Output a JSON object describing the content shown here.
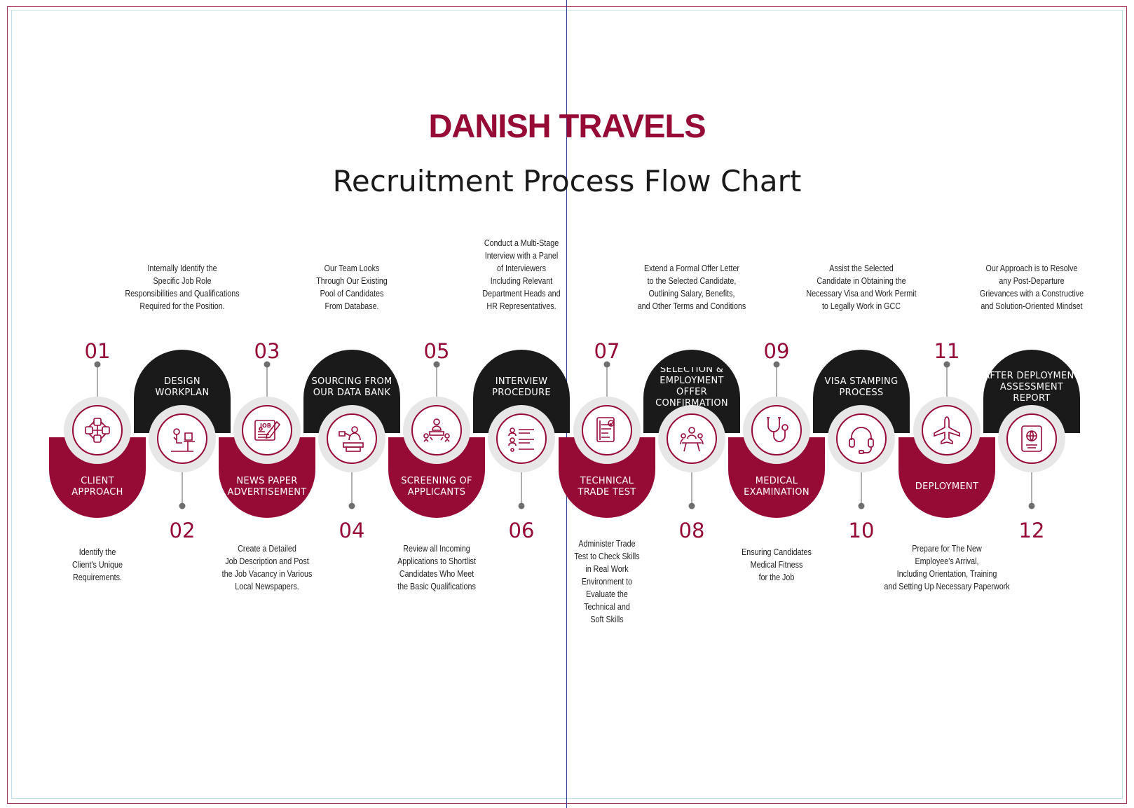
{
  "brand": "DANISH TRAVELS",
  "title": "Recruitment Process Flow Chart",
  "colors": {
    "primary": "#960a36",
    "dark": "#1b1a1a",
    "ring": "#e7e7e7"
  },
  "steps": [
    {
      "num": "01",
      "label": "CLIENT\nAPPROACH",
      "desc": "Identify the\nClient's Unique\nRequirements.",
      "icon": "network-nodes-icon"
    },
    {
      "num": "02",
      "label": "DESIGN\nWORKPLAN",
      "desc": "Internally Identify the\nSpecific Job Role\nResponsibilities and Qualifications\nRequired for the Position.",
      "icon": "desk-worker-icon"
    },
    {
      "num": "03",
      "label": "NEWS PAPER\nADVERTISEMENT",
      "desc": "Create a Detailed\nJob Description and Post\nthe Job Vacancy in Various\nLocal Newspapers.",
      "icon": "job-newspaper-icon",
      "icon_text": "JOB"
    },
    {
      "num": "04",
      "label": "SOURCING FROM\nOUR DATA BANK",
      "desc": "Our Team Looks\nThrough Our Existing\nPool of Candidates\nFrom Database.",
      "icon": "worker-database-icon"
    },
    {
      "num": "05",
      "label": "SCREENING OF\nAPPLICANTS",
      "desc": "Review all Incoming\nApplications to Shortlist\nCandidates Who Meet\nthe Basic Qualifications",
      "icon": "team-meeting-icon"
    },
    {
      "num": "06",
      "label": "INTERVIEW\nPROCEDURE",
      "desc": "Conduct a Multi-Stage\nInterview with a Panel\nof Interviewers\nIncluding Relevant\nDepartment Heads and\nHR Representatives.",
      "icon": "candidate-list-icon"
    },
    {
      "num": "07",
      "label": "TECHNICAL\nTRADE TEST",
      "desc": "Administer Trade\nTest to Check Skills\nin Real Work\nEnvironment to\nEvaluate the\nTechnical and\nSoft Skills",
      "icon": "test-document-icon"
    },
    {
      "num": "08",
      "label": "SELECTION &\nEMPLOYMENT OFFER\nCONFIRMATION",
      "desc": "Extend a Formal Offer Letter\nto the Selected Candidate,\nOutlining Salary, Benefits,\nand Other Terms and Conditions",
      "icon": "interview-table-icon"
    },
    {
      "num": "09",
      "label": "MEDICAL\nEXAMINATION",
      "desc": "Ensuring Candidates\nMedical Fitness\nfor the Job",
      "icon": "stethoscope-icon"
    },
    {
      "num": "10",
      "label": "VISA STAMPING\nPROCESS",
      "desc": "Assist the Selected\nCandidate in Obtaining the\nNecessary Visa and Work Permit\nto Legally Work in GCC",
      "icon": "headset-icon"
    },
    {
      "num": "11",
      "label": "DEPLOYMENT",
      "desc": "Prepare for The New\nEmployee's Arrival,\nIncluding Orientation, Training\nand Setting Up Necessary Paperwork",
      "icon": "airplane-icon"
    },
    {
      "num": "12",
      "label": "AFTER DEPLOYMENT\nASSESSMENT REPORT",
      "desc": "Our Approach is to Resolve\nany Post-Departure\nGrievances with a Constructive\nand Solution-Oriented Mindset",
      "icon": "passport-icon"
    }
  ]
}
